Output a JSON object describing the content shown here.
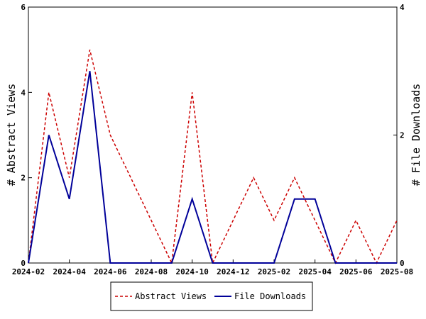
{
  "chart_data": {
    "type": "line",
    "x_dates": [
      "2024-02",
      "2024-03",
      "2024-04",
      "2024-05",
      "2024-06",
      "2024-07",
      "2024-08",
      "2024-09",
      "2024-10",
      "2024-11",
      "2024-12",
      "2025-01",
      "2025-02",
      "2025-03",
      "2025-04",
      "2025-05",
      "2025-06",
      "2025-07",
      "2025-08"
    ],
    "x_ticks": [
      "2024-02",
      "2024-04",
      "2024-06",
      "2024-08",
      "2024-10",
      "2024-12",
      "2025-02",
      "2025-04",
      "2025-06",
      "2025-08"
    ],
    "ylabel_left": "# Abstract Views",
    "ylabel_right": "# File Downloads",
    "ylim_left": [
      0,
      6
    ],
    "ylim_right": [
      0,
      4
    ],
    "yticks_left": [
      0,
      2,
      4,
      6
    ],
    "yticks_right": [
      0,
      2,
      4
    ],
    "grid": false,
    "legend_placement": "bottom-center",
    "series": [
      {
        "name": "Abstract Views",
        "axis": "left",
        "color": "#cc0000",
        "style": "dashed",
        "values": [
          0,
          4,
          2,
          5,
          3,
          2,
          1,
          0,
          4,
          0,
          1,
          2,
          1,
          2,
          1,
          0,
          1,
          0,
          1
        ]
      },
      {
        "name": "File Downloads",
        "axis": "right",
        "color": "#000099",
        "style": "solid",
        "values": [
          0,
          2,
          1,
          3,
          0,
          0,
          0,
          0,
          1,
          0,
          0,
          0,
          0,
          1,
          1,
          0,
          0,
          0,
          0
        ]
      }
    ]
  }
}
